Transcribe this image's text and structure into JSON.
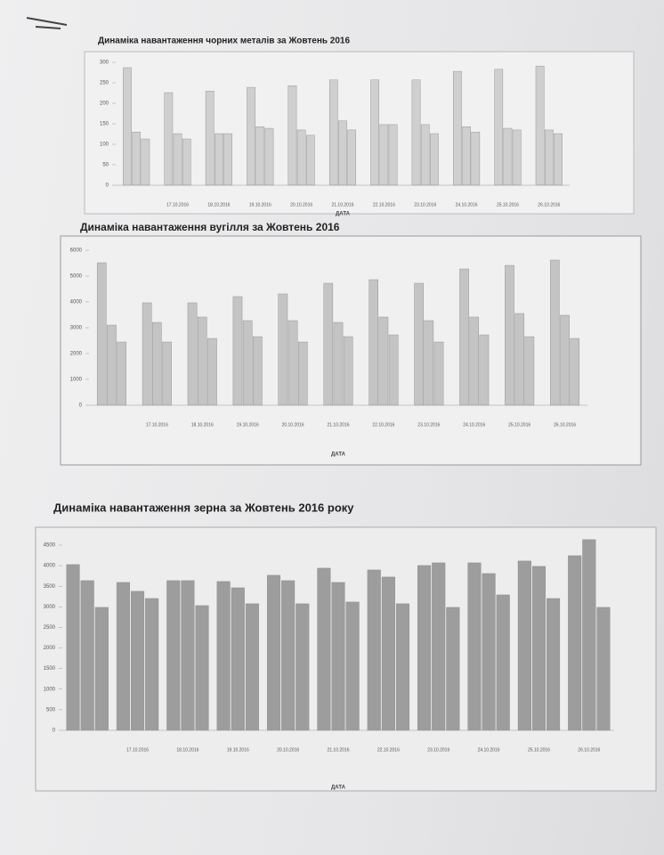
{
  "chart_data": [
    {
      "type": "bar",
      "title": "Динаміка навантаження чорних металів за Жовтень 2016",
      "x_label": "ДАТА",
      "categories": [
        null,
        "17.10.2016",
        "18.10.2016",
        "19.10.2016",
        "20.10.2016",
        "21.10.2016",
        "22.10.2016",
        "23.10.2016",
        "24.10.2016",
        "25.10.2016",
        "26.10.2016"
      ],
      "series": [
        {
          "color": "#cfcfcf",
          "values": [
            287,
            226,
            230,
            239,
            243,
            257,
            257,
            257,
            278,
            283,
            291
          ]
        },
        {
          "color": "#cfcfcf",
          "values": [
            130,
            126,
            126,
            143,
            135,
            157,
            148,
            148,
            143,
            139,
            135
          ]
        },
        {
          "color": "#cfcfcf",
          "values": [
            113,
            113,
            126,
            139,
            122,
            135,
            148,
            126,
            130,
            135,
            126
          ]
        }
      ],
      "ylim": [
        0,
        300
      ],
      "yticks": [
        0,
        50,
        100,
        150,
        200,
        250,
        300
      ]
    },
    {
      "type": "bar",
      "title": "Динаміка навантаження вугілля за Жовтень 2016",
      "x_label": "ДАТА",
      "categories": [
        null,
        "17.10.2016",
        "18.10.2016",
        "19.10.2016",
        "20.10.2016",
        "21.10.2016",
        "22.10.2016",
        "23.10.2016",
        "24.10.2016",
        "25.10.2016",
        "26.10.2016"
      ],
      "series": [
        {
          "color": "#c4c4c4",
          "values": [
            5517,
            3966,
            3966,
            4207,
            4310,
            4724,
            4862,
            4724,
            5276,
            5414,
            5621
          ]
        },
        {
          "color": "#c4c4c4",
          "values": [
            3103,
            3207,
            3414,
            3276,
            3276,
            3207,
            3414,
            3276,
            3414,
            3552,
            3483
          ]
        },
        {
          "color": "#c4c4c4",
          "values": [
            2448,
            2448,
            2586,
            2655,
            2448,
            2655,
            2724,
            2448,
            2724,
            2655,
            2586
          ]
        }
      ],
      "ylim": [
        0,
        6000
      ],
      "yticks": [
        0,
        1000,
        2000,
        3000,
        4000,
        5000,
        6000
      ]
    },
    {
      "type": "bar",
      "title": "Динаміка навантаження зерна за Жовтень 2016 року",
      "x_label": "ДАТА",
      "categories": [
        null,
        "17.10.2016",
        "18.10.2016",
        "19.10.2016",
        "20.10.2016",
        "21.10.2016",
        "22.10.2016",
        "23.10.2016",
        "24.10.2016",
        "25.10.2016",
        "26.10.2016"
      ],
      "series": [
        {
          "color": "#9d9d9d",
          "values": [
            4026,
            3593,
            3636,
            3615,
            3766,
            3939,
            3896,
            4004,
            4069,
            4113,
            4242
          ]
        },
        {
          "color": "#9d9d9d",
          "values": [
            3636,
            3377,
            3636,
            3463,
            3636,
            3593,
            3723,
            4069,
            3809,
            3983,
            4632
          ]
        },
        {
          "color": "#9d9d9d",
          "values": [
            2987,
            3203,
            3030,
            3074,
            3074,
            3117,
            3074,
            2987,
            3290,
            3203,
            2987
          ]
        }
      ],
      "ylim": [
        0,
        4500
      ],
      "yticks": [
        0,
        500,
        1000,
        1500,
        2000,
        2500,
        3000,
        3500,
        4000,
        4500
      ]
    }
  ]
}
